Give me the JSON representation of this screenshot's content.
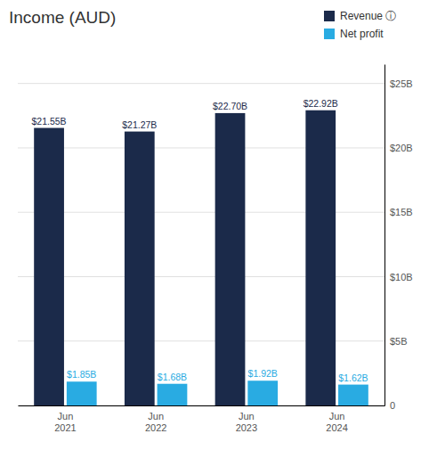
{
  "chart_data": {
    "type": "bar",
    "title": "Income (AUD)",
    "categories": [
      "Jun\n2021",
      "Jun\n2022",
      "Jun\n2023",
      "Jun\n2024"
    ],
    "series": [
      {
        "name": "Revenue ⓘ",
        "color": "#1b2a4a",
        "values": [
          21.55,
          21.27,
          22.7,
          22.92
        ],
        "value_labels": [
          "$21.55B",
          "$21.27B",
          "$22.70B",
          "$22.92B"
        ]
      },
      {
        "name": "Net profit",
        "color": "#29abe2",
        "values": [
          1.85,
          1.68,
          1.92,
          1.62
        ],
        "value_labels": [
          "$1.85B",
          "$1.68B",
          "$1.92B",
          "$1.62B"
        ]
      }
    ],
    "ylim": [
      0,
      26.5
    ],
    "yticks": [
      0,
      {
        "value": 5,
        "label": "$5B"
      },
      {
        "value": 10,
        "label": "$10B"
      },
      {
        "value": 15,
        "label": "$15B"
      },
      {
        "value": 20,
        "label": "$20B"
      },
      {
        "value": 25,
        "label": "$25B"
      }
    ],
    "grid": true,
    "legend": "top-right",
    "data_labels": true
  }
}
